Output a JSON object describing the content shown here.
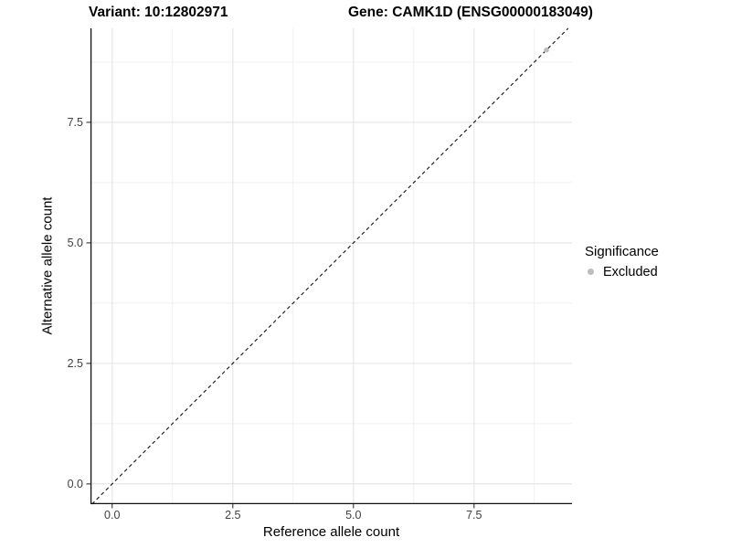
{
  "titles": {
    "variant": "Variant: 10:12802971",
    "gene": "Gene: CAMK1D (ENSG00000183049)"
  },
  "chart_data": {
    "type": "scatter",
    "xlabel": "Reference allele count",
    "ylabel": "Alternative allele count",
    "xlim": [
      -0.45,
      9.53
    ],
    "ylim": [
      -0.42,
      9.45
    ],
    "x_major_ticks": [
      0,
      2.5,
      5,
      7.5
    ],
    "y_major_ticks": [
      0,
      2.5,
      5,
      7.5
    ],
    "x_tick_labels": [
      "0.0",
      "2.5",
      "5.0",
      "7.5"
    ],
    "y_tick_labels": [
      "0.0",
      "2.5",
      "5.0",
      "7.5"
    ],
    "x_minor_gridlines": [
      1.25,
      3.75,
      6.25,
      8.75
    ],
    "y_minor_gridlines": [
      1.25,
      3.75,
      6.25,
      8.75
    ],
    "grid": "major and minor, light gray on white",
    "reference_line": {
      "type": "identity y=x",
      "style": "dashed",
      "color": "#1a1a1a"
    },
    "series": [
      {
        "name": "Excluded",
        "color": "#bdbdbd",
        "points": [
          [
            9,
            9
          ]
        ]
      }
    ],
    "legend": {
      "title": "Significance",
      "position": "right",
      "items": [
        {
          "label": "Excluded",
          "color": "#bdbdbd"
        }
      ]
    },
    "colors": {
      "grid_major": "#e4e4e4",
      "grid_minor": "#efefef",
      "axis_line": "#111111",
      "tick_mark": "#333333",
      "tick_text": "#404040"
    }
  }
}
